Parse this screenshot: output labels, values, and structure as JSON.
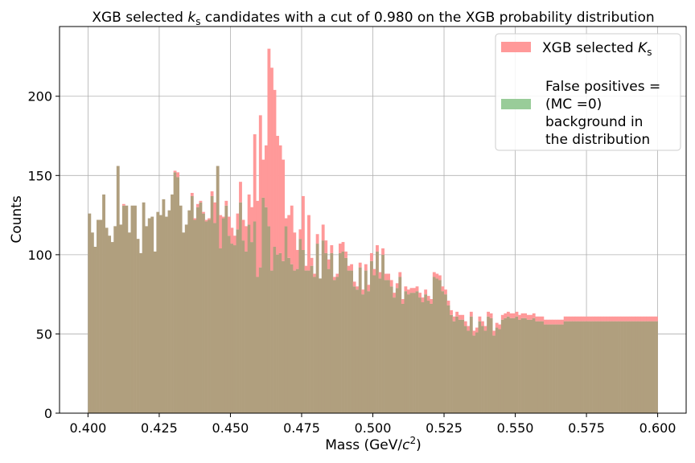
{
  "chart_data": {
    "type": "bar",
    "title": "XGB selected k_s candidates with a cut of 0.980 on the XGB probability distribution",
    "xlabel": "Mass (GeV/c²)",
    "ylabel": "Counts",
    "xlim": [
      0.39,
      0.61
    ],
    "ylim": [
      0,
      244
    ],
    "xticks": [
      0.4,
      0.425,
      0.45,
      0.475,
      0.5,
      0.525,
      0.55,
      0.575,
      0.6
    ],
    "xtick_labels": [
      "0.400",
      "0.425",
      "0.450",
      "0.475",
      "0.500",
      "0.525",
      "0.550",
      "0.575",
      "0.600"
    ],
    "yticks": [
      0,
      50,
      100,
      150,
      200
    ],
    "ytick_labels": [
      "0",
      "50",
      "100",
      "150",
      "200"
    ],
    "grid": true,
    "legend_position": "top-right",
    "bin_range": [
      0.4,
      0.6
    ],
    "series": [
      {
        "name": "XGB selected K_s",
        "color": "#ff9999",
        "values": [
          126,
          114,
          105,
          122,
          122,
          138,
          117,
          112,
          108,
          118,
          156,
          119,
          132,
          131,
          114,
          131,
          131,
          110,
          101,
          133,
          118,
          123,
          124,
          102,
          127,
          125,
          135,
          124,
          128,
          138,
          153,
          152,
          131,
          114,
          119,
          128,
          139,
          123,
          132,
          134,
          127,
          122,
          123,
          140,
          133,
          156,
          125,
          124,
          134,
          124,
          117,
          112,
          126,
          146,
          122,
          118,
          138,
          130,
          176,
          134,
          188,
          160,
          169,
          230,
          218,
          204,
          175,
          169,
          160,
          123,
          125,
          131,
          114,
          103,
          116,
          137,
          93,
          125,
          98,
          88,
          113,
          85,
          119,
          109,
          97,
          106,
          86,
          88,
          107,
          108,
          102,
          93,
          94,
          83,
          80,
          95,
          78,
          94,
          81,
          101,
          91,
          106,
          89,
          104,
          88,
          88,
          84,
          76,
          82,
          89,
          72,
          80,
          78,
          79,
          79,
          80,
          76,
          73,
          78,
          74,
          72,
          89,
          88,
          87,
          80,
          78,
          71,
          65,
          61,
          64,
          62,
          62,
          58,
          55,
          64,
          52,
          54,
          61,
          58,
          55,
          64,
          63,
          52,
          57,
          56,
          62,
          63,
          64,
          63,
          63,
          64,
          62,
          63,
          63,
          62,
          62,
          63,
          61,
          61,
          61,
          59,
          59,
          59,
          59,
          59,
          59,
          59,
          61,
          61,
          61,
          61,
          61,
          61,
          61,
          61,
          61,
          61,
          61,
          61,
          61,
          61,
          61,
          61,
          61,
          61,
          61,
          61,
          61,
          61,
          61,
          61,
          61,
          61,
          61,
          61,
          61,
          61,
          61,
          61,
          61
        ]
      },
      {
        "name": "False positives = (MC =0) background in the distribution",
        "color": "#99cc99",
        "values": [
          126,
          114,
          105,
          122,
          122,
          138,
          117,
          112,
          108,
          118,
          156,
          119,
          131,
          131,
          114,
          131,
          131,
          110,
          101,
          133,
          118,
          123,
          124,
          102,
          127,
          125,
          135,
          124,
          128,
          138,
          152,
          149,
          131,
          114,
          119,
          128,
          137,
          122,
          130,
          133,
          126,
          121,
          122,
          137,
          120,
          156,
          104,
          123,
          131,
          112,
          107,
          106,
          116,
          133,
          109,
          102,
          119,
          108,
          121,
          86,
          92,
          136,
          130,
          118,
          90,
          105,
          100,
          101,
          96,
          118,
          98,
          94,
          90,
          91,
          110,
          103,
          90,
          90,
          93,
          86,
          107,
          85,
          109,
          101,
          91,
          101,
          84,
          86,
          101,
          102,
          98,
          90,
          90,
          80,
          78,
          92,
          75,
          90,
          77,
          96,
          87,
          102,
          85,
          100,
          84,
          84,
          80,
          73,
          79,
          86,
          69,
          77,
          75,
          76,
          76,
          77,
          73,
          70,
          75,
          71,
          69,
          86,
          85,
          84,
          77,
          75,
          68,
          62,
          58,
          61,
          59,
          59,
          55,
          52,
          61,
          49,
          51,
          58,
          55,
          52,
          61,
          60,
          49,
          54,
          53,
          59,
          60,
          61,
          60,
          60,
          61,
          59,
          60,
          60,
          59,
          59,
          60,
          58,
          58,
          58,
          56,
          56,
          56,
          56,
          56,
          56,
          56,
          58,
          58,
          58,
          58,
          58,
          58,
          58,
          58,
          58,
          58,
          58,
          58,
          58,
          58,
          58,
          58,
          58,
          58,
          58,
          58,
          58,
          58,
          58,
          58,
          58,
          58,
          58,
          58,
          58,
          58,
          58,
          58,
          58
        ]
      }
    ],
    "overlap_color": "#b09f7e"
  },
  "legend": {
    "entry1_prefix": "XGB selected ",
    "entry1_italic": "K",
    "entry1_sub": "s",
    "entry2_lines": [
      "False positives =",
      "(MC =0)",
      "background in",
      "the distribution"
    ]
  },
  "title_parts": {
    "prefix": "XGB selected ",
    "italic": "k",
    "sub": "s",
    "suffix": " candidates with a cut of 0.980 on the XGB probability distribution"
  },
  "xlabel_parts": {
    "prefix": "Mass (GeV/",
    "italic": "c",
    "sup": "2",
    "suffix": ")"
  }
}
